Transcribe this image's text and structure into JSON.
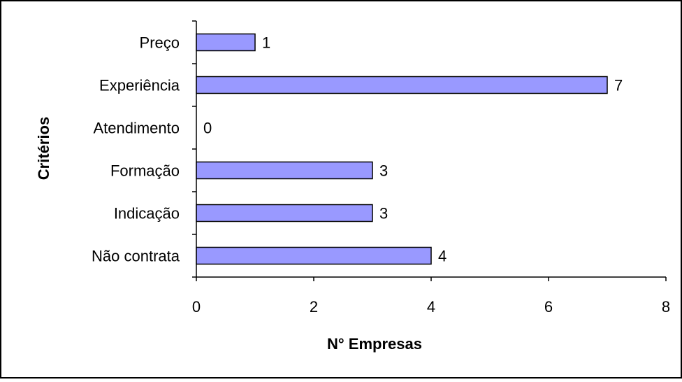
{
  "chart_data": {
    "type": "bar",
    "orientation": "horizontal",
    "categories": [
      "Preço",
      "Experiência",
      "Atendimento",
      "Formação",
      "Indicação",
      "Não contrata"
    ],
    "values": [
      1,
      7,
      0,
      3,
      3,
      4
    ],
    "xlabel": "N° Empresas",
    "ylabel": "Critérios",
    "xlim": [
      0,
      8
    ],
    "xticks": [
      0,
      2,
      4,
      6,
      8
    ],
    "grid": false,
    "legend": false,
    "data_labels": true,
    "bar_color": "#9999FF",
    "bar_edge_color": "#000000"
  }
}
